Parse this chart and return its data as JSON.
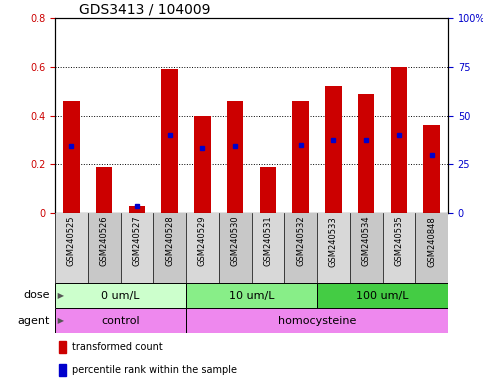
{
  "title": "GDS3413 / 104009",
  "samples": [
    "GSM240525",
    "GSM240526",
    "GSM240527",
    "GSM240528",
    "GSM240529",
    "GSM240530",
    "GSM240531",
    "GSM240532",
    "GSM240533",
    "GSM240534",
    "GSM240535",
    "GSM240848"
  ],
  "transformed_count": [
    0.46,
    0.19,
    0.03,
    0.59,
    0.4,
    0.46,
    0.19,
    0.46,
    0.52,
    0.49,
    0.6,
    0.36
  ],
  "percentile_rank": [
    0.275,
    0.0,
    0.03,
    0.32,
    0.265,
    0.275,
    0.0,
    0.28,
    0.3,
    0.3,
    0.32,
    0.24
  ],
  "bar_color": "#cc0000",
  "dot_color": "#0000cc",
  "chart_bg": "#ffffff",
  "tick_area_bg": "#d8d8d8",
  "ylim": [
    0,
    0.8
  ],
  "yticks_left": [
    0,
    0.2,
    0.4,
    0.6,
    0.8
  ],
  "yticks_right": [
    0,
    25,
    50,
    75,
    100
  ],
  "ytick_labels_right": [
    "0",
    "25",
    "50",
    "75",
    "100%"
  ],
  "dose_groups": [
    {
      "label": "0 um/L",
      "start": 0,
      "end": 4,
      "color": "#ccffcc"
    },
    {
      "label": "10 um/L",
      "start": 4,
      "end": 8,
      "color": "#88ee88"
    },
    {
      "label": "100 um/L",
      "start": 8,
      "end": 12,
      "color": "#44cc44"
    }
  ],
  "agent_groups": [
    {
      "label": "control",
      "start": 0,
      "end": 4,
      "color": "#ee88ee"
    },
    {
      "label": "homocysteine",
      "start": 4,
      "end": 12,
      "color": "#ee88ee"
    }
  ],
  "dose_label": "dose",
  "agent_label": "agent",
  "legend_entries": [
    {
      "color": "#cc0000",
      "label": "transformed count"
    },
    {
      "color": "#0000cc",
      "label": "percentile rank within the sample"
    }
  ],
  "bar_width": 0.5,
  "title_fontsize": 10,
  "tick_fontsize": 7,
  "sample_fontsize": 6,
  "row_fontsize": 8,
  "legend_fontsize": 7
}
